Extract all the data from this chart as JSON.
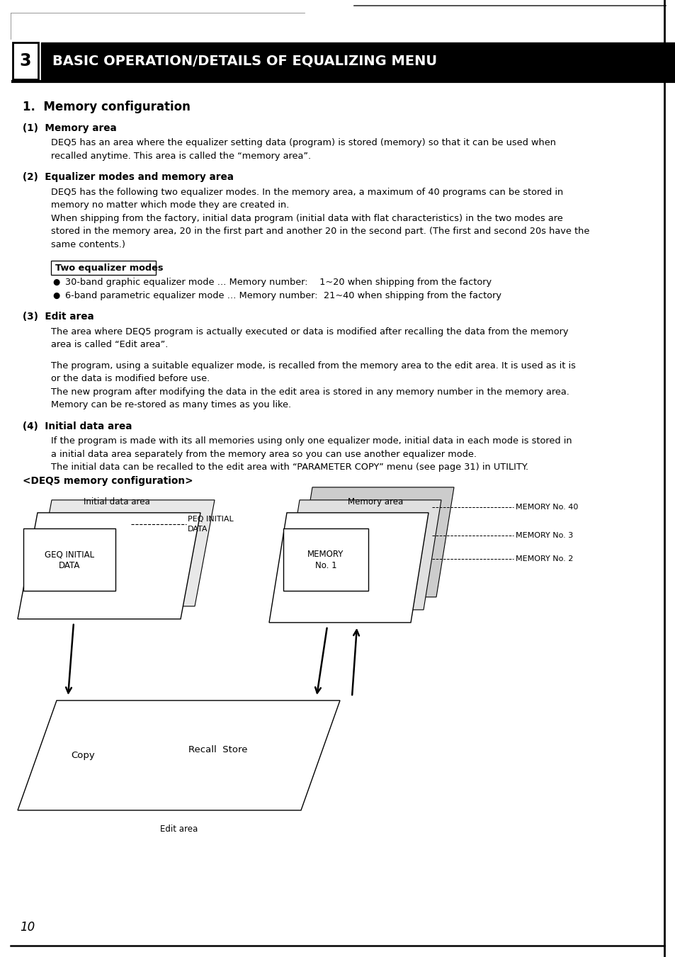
{
  "bg_color": "#ffffff",
  "title_box_num": "3",
  "title_text": "BASIC OPERATION/DETAILS OF EQUALIZING MENU",
  "section_title": "1.  Memory configuration",
  "body_lines": [
    {
      "type": "subheading",
      "text": "(1)  Memory area"
    },
    {
      "type": "body",
      "text": "DEQ5 has an area where the equalizer setting data (program) is stored (memory) so that it can be used when"
    },
    {
      "type": "body",
      "text": "recalled anytime. This area is called the “memory area”."
    },
    {
      "type": "blank"
    },
    {
      "type": "subheading",
      "text": "(2)  Equalizer modes and memory area"
    },
    {
      "type": "body",
      "text": "DEQ5 has the following two equalizer modes. In the memory area, a maximum of 40 programs can be stored in"
    },
    {
      "type": "body",
      "text": "memory no matter which mode they are created in."
    },
    {
      "type": "body",
      "text": "When shipping from the factory, initial data program (initial data with flat characteristics) in the two modes are"
    },
    {
      "type": "body",
      "text": "stored in the memory area, 20 in the first part and another 20 in the second part. (The first and second 20s have the"
    },
    {
      "type": "body",
      "text": "same contents.)"
    },
    {
      "type": "blank"
    },
    {
      "type": "boxed",
      "text": "Two equalizer modes"
    },
    {
      "type": "bullet",
      "text": "30-band graphic equalizer mode … Memory number:    1~20 when shipping from the factory"
    },
    {
      "type": "bullet",
      "text": "6-band parametric equalizer mode … Memory number:  21~40 when shipping from the factory"
    },
    {
      "type": "blank"
    },
    {
      "type": "subheading",
      "text": "(3)  Edit area"
    },
    {
      "type": "body",
      "text": "The area where DEQ5 program is actually executed or data is modified after recalling the data from the memory"
    },
    {
      "type": "body",
      "text": "area is called “Edit area”."
    },
    {
      "type": "blank"
    },
    {
      "type": "body",
      "text": "The program, using a suitable equalizer mode, is recalled from the memory area to the edit area. It is used as it is"
    },
    {
      "type": "body",
      "text": "or the data is modified before use."
    },
    {
      "type": "body",
      "text": "The new program after modifying the data in the edit area is stored in any memory number in the memory area."
    },
    {
      "type": "body",
      "text": "Memory can be re-stored as many times as you like."
    },
    {
      "type": "blank"
    },
    {
      "type": "subheading",
      "text": "(4)  Initial data area"
    },
    {
      "type": "body",
      "text": "If the program is made with its all memories using only one equalizer mode, initial data in each mode is stored in"
    },
    {
      "type": "body",
      "text": "a initial data area separately from the memory area so you can use another equalizer mode."
    },
    {
      "type": "body",
      "text": "The initial data can be recalled to the edit area with “PARAMETER COPY” menu (see page 31) in UTILITY."
    },
    {
      "type": "bold_label",
      "text": "<DEQ5 memory configuration>"
    }
  ],
  "page_number": "10"
}
